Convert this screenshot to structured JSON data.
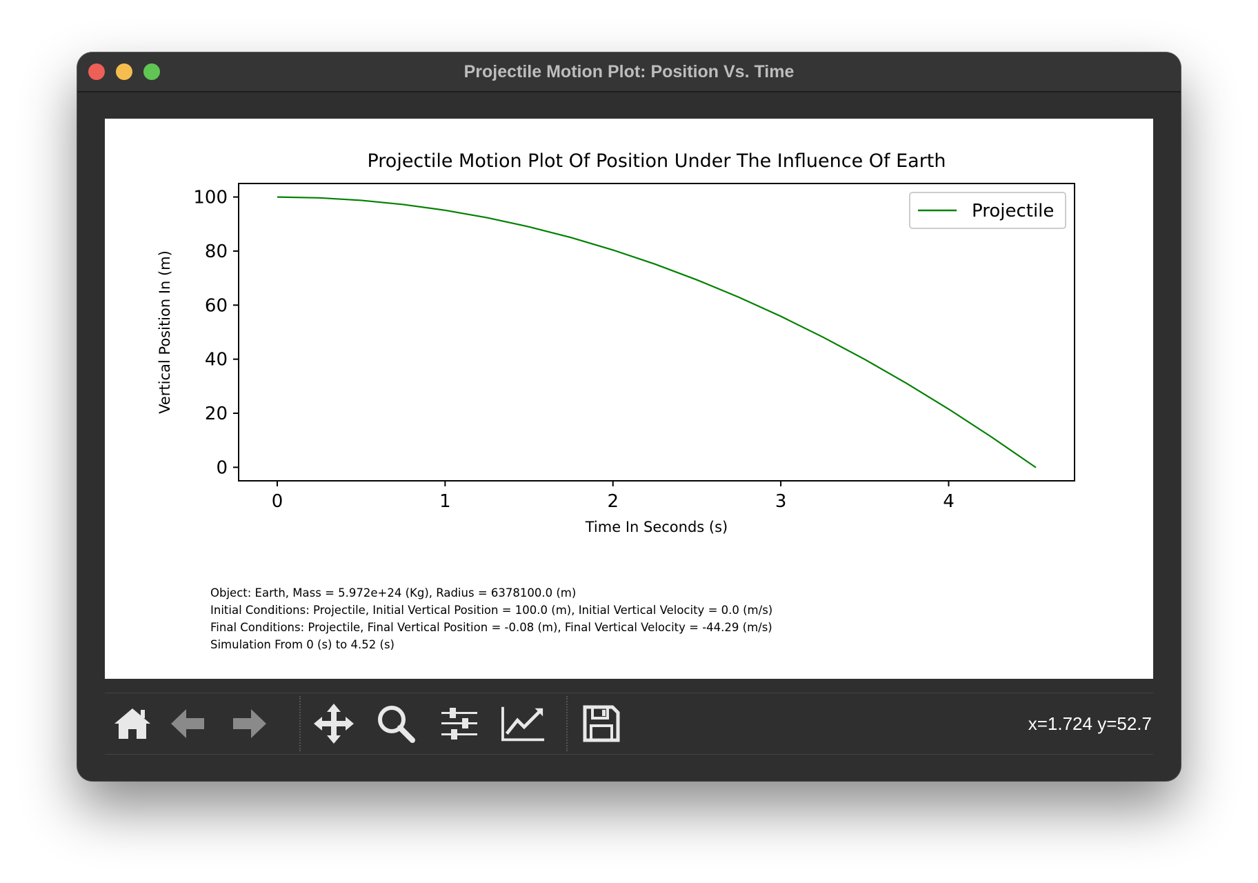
{
  "window": {
    "title": "Projectile Motion Plot: Position Vs. Time"
  },
  "info_lines": [
    "Object: Earth, Mass = 5.972e+24 (Kg), Radius = 6378100.0 (m)",
    "Initial Conditions: Projectile, Initial Vertical Position = 100.0 (m), Initial Vertical Velocity = 0.0 (m/s)",
    "Final Conditions: Projectile, Final Vertical Position = -0.08 (m), Final Vertical Velocity = -44.29 (m/s)",
    "Simulation From 0 (s) to 4.52 (s)"
  ],
  "toolbar": {
    "buttons": [
      {
        "name": "home-button",
        "icon": "home-icon"
      },
      {
        "name": "back-button",
        "icon": "arrow-left-icon"
      },
      {
        "name": "forward-button",
        "icon": "arrow-right-icon"
      },
      {
        "name": "pan-button",
        "icon": "move-icon"
      },
      {
        "name": "zoom-button",
        "icon": "magnifier-icon"
      },
      {
        "name": "configure-subplots-button",
        "icon": "sliders-icon"
      },
      {
        "name": "edit-axes-button",
        "icon": "line-chart-icon"
      },
      {
        "name": "save-button",
        "icon": "floppy-disk-icon"
      }
    ],
    "coords": "x=1.724 y=52.7"
  },
  "chart_data": {
    "type": "line",
    "title": "Projectile Motion Plot Of Position Under The Influence Of Earth",
    "xlabel": "Time In Seconds (s)",
    "ylabel": "Vertical Position In (m)",
    "xlim": [
      -0.23,
      4.75
    ],
    "ylim": [
      -5,
      105
    ],
    "xticks": [
      0,
      1,
      2,
      3,
      4
    ],
    "yticks": [
      0,
      20,
      40,
      60,
      80,
      100
    ],
    "grid": false,
    "legend_position": "top-right",
    "series": [
      {
        "name": "Projectile",
        "color": "#008000",
        "x": [
          0,
          0.25,
          0.5,
          0.75,
          1.0,
          1.25,
          1.5,
          1.75,
          2.0,
          2.25,
          2.5,
          2.75,
          3.0,
          3.25,
          3.5,
          3.75,
          4.0,
          4.25,
          4.52
        ],
        "y": [
          100,
          99.69,
          98.77,
          97.24,
          95.1,
          92.34,
          88.97,
          85.0,
          80.39,
          75.18,
          69.35,
          62.92,
          55.86,
          48.2,
          39.93,
          31.04,
          21.54,
          11.43,
          -0.08
        ]
      }
    ]
  }
}
